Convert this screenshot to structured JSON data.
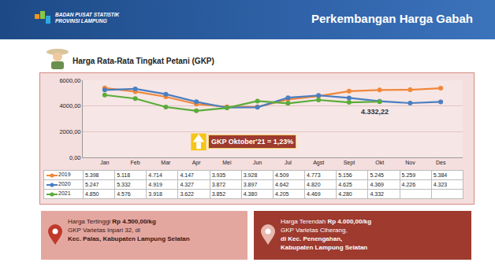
{
  "header": {
    "organization": [
      "BADAN PUSAT STATISTIK",
      "PROVINSI LAMPUNG"
    ],
    "title": "Perkembangan Harga Gabah"
  },
  "chart_data": {
    "type": "line",
    "title": "Harga Rata-Rata Tingkat Petani (GKP)",
    "categories": [
      "Jan",
      "Feb",
      "Mar",
      "Apr",
      "Mei",
      "Jun",
      "Jul",
      "Agst",
      "Sept",
      "Okt",
      "Nov",
      "Des"
    ],
    "series": [
      {
        "name": "2019",
        "color": "#f0883a",
        "values": [
          5398,
          5118,
          4714,
          4147,
          3935,
          3928,
          4509,
          4773,
          5156,
          5245,
          5259,
          5384
        ],
        "value_labels": [
          "5.398",
          "5.118",
          "4.714",
          "4.147",
          "3.935",
          "3.928",
          "4.509",
          "4.773",
          "5.156",
          "5.245",
          "5.259",
          "5.384"
        ]
      },
      {
        "name": "2020",
        "color": "#4a7fc1",
        "values": [
          5247,
          5332,
          4919,
          4327,
          3872,
          3897,
          4642,
          4820,
          4625,
          4369,
          4226,
          4323
        ],
        "value_labels": [
          "5.247",
          "5.332",
          "4.919",
          "4.327",
          "3.872",
          "3.897",
          "4.642",
          "4.820",
          "4.625",
          "4.369",
          "4.226",
          "4.323"
        ]
      },
      {
        "name": "2021",
        "color": "#5aac3a",
        "values": [
          4850,
          4576,
          3918,
          3622,
          3852,
          4380,
          4205,
          4469,
          4280,
          4332,
          null,
          null
        ],
        "value_labels": [
          "4.850",
          "4.576",
          "3.918",
          "3.622",
          "3.852",
          "4.380",
          "4.205",
          "4.469",
          "4.280",
          "4.332",
          null,
          null
        ]
      }
    ],
    "ylim": [
      0,
      6000
    ],
    "yticks": [
      {
        "value": 0,
        "label": "0,00"
      },
      {
        "value": 2000,
        "label": "2000,00"
      },
      {
        "value": 4000,
        "label": "4000,00"
      },
      {
        "value": 6000,
        "label": "6000,00"
      }
    ],
    "grid": true,
    "marker": "circle",
    "annotations": [
      {
        "text": "4.332,22",
        "category": "Okt",
        "value": 4332.22
      },
      {
        "text": "GKP Oktober'21 = 1,23%"
      }
    ]
  },
  "info_boxes": [
    {
      "label": "Harga Tertinggi",
      "price": "Rp 4.500,00/kg",
      "detail": "GKP Varietas Inpari 32, di",
      "location": [
        "Kec. Palas, Kabupaten Lampung Selatan"
      ]
    },
    {
      "label": "Harga Terendah",
      "price": "Rp 4.000,00/kg",
      "detail": "GKP Varietas Ciherang,",
      "location": [
        "di Kec. Penengahan,",
        "Kabupaten Lampung Selatan"
      ]
    }
  ]
}
